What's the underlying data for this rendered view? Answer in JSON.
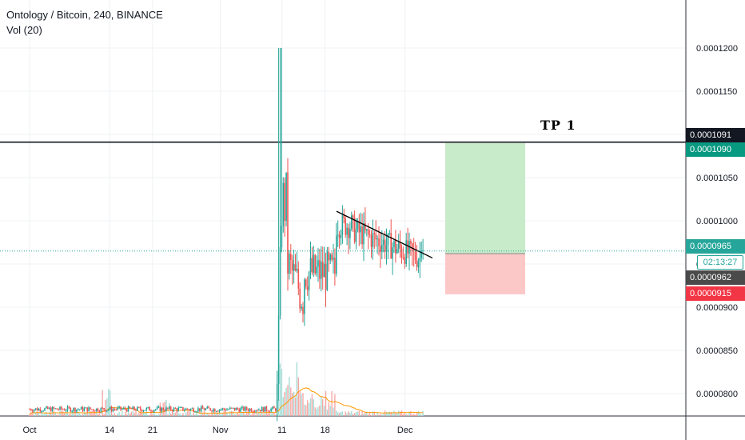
{
  "legend": {
    "symbol": "Ontology / Bitcoin, 240, BINANCE",
    "indicator": "Vol (20)"
  },
  "annotations": {
    "tp_label": "TP 1",
    "countdown": "02:13:27"
  },
  "colors": {
    "up": "#26a69a",
    "down": "#ef5350",
    "tp_zone": "#c8ebc9",
    "sl_zone": "#fbc7c7",
    "volume_ma": "#ff9800",
    "grid": "#edf0f3"
  },
  "chart_data": {
    "type": "candlestick",
    "title": "Ontology / Bitcoin, 240, BINANCE",
    "indicator": "Vol (20)",
    "x_ticks": [
      "Oct",
      "14",
      "21",
      "Nov",
      "11",
      "18",
      "Dec"
    ],
    "y_ticks": [
      "0.0000800",
      "0.0000850",
      "0.0000900",
      "0.0000950",
      "0.0001000",
      "0.0001050",
      "0.0001100",
      "0.0001150",
      "0.0001200"
    ],
    "ylim": [
      7.7e-05,
      0.000124
    ],
    "price_labels": [
      {
        "value": "0.0001091",
        "kind": "horizontal-line"
      },
      {
        "value": "0.0001090",
        "kind": "take-profit"
      },
      {
        "value": "0.0000965",
        "kind": "last-price"
      },
      {
        "value": "0.0000962",
        "kind": "entry"
      },
      {
        "value": "0.0000915",
        "kind": "stop-loss"
      }
    ],
    "horizontal_line": 0.0001091,
    "trendline": {
      "from": [
        "Nov 1",
        0.0001011
      ],
      "to": [
        "Nov 12",
        9.57e-05
      ]
    },
    "position": {
      "entry": 9.62e-05,
      "target": 0.000109,
      "stop": 9.15e-05
    }
  }
}
